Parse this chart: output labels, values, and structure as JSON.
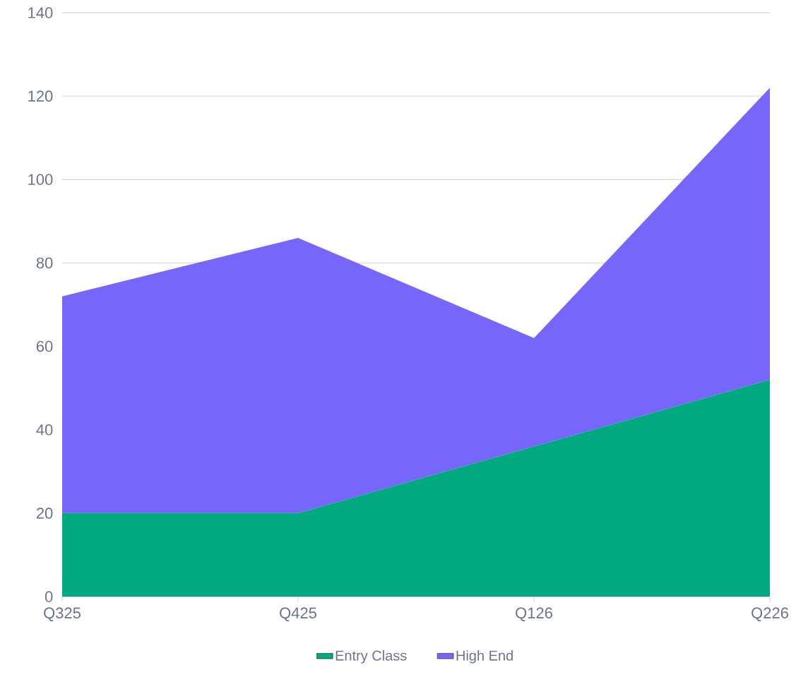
{
  "chart_data": {
    "type": "area",
    "stacked": true,
    "categories": [
      "Q325",
      "Q425",
      "Q126",
      "Q226"
    ],
    "series": [
      {
        "name": "Entry Class",
        "color": "#00a97f",
        "values": [
          20,
          20,
          36,
          52
        ]
      },
      {
        "name": "High End",
        "color": "#7766fc",
        "values": [
          52,
          66,
          26,
          70
        ]
      }
    ],
    "ylim": [
      0,
      140
    ],
    "yticks": [
      0,
      20,
      40,
      60,
      80,
      100,
      120,
      140
    ],
    "grid": "y",
    "legend": "bottom"
  }
}
